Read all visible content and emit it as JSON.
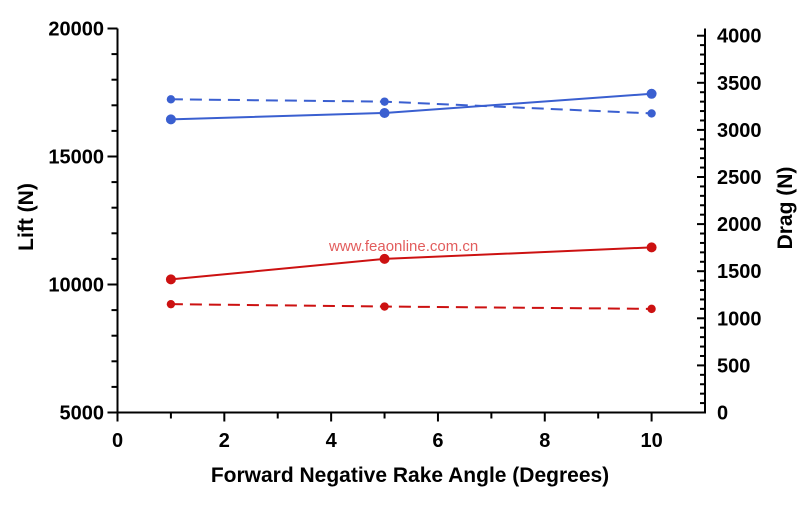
{
  "watermark": {
    "text": "www.feaonline.com.cn",
    "color": "#e25d5d"
  },
  "chart_data": {
    "type": "line",
    "title": "",
    "xlabel": "Forward Negative Rake Angle (Degrees)",
    "grid": false,
    "legend": "none",
    "x": [
      1,
      5,
      10
    ],
    "x_axis": {
      "min": 0,
      "max": 11,
      "major_step": 2,
      "minor_step": 1,
      "tick_values": [
        0,
        2,
        4,
        6,
        8,
        10
      ],
      "tick_labels": [
        "0",
        "2",
        "4",
        "6",
        "8",
        "10"
      ]
    },
    "left_axis": {
      "label": "Lift (N)",
      "min": 5000,
      "max": 20000,
      "major_step": 5000,
      "minor_step": 1000,
      "tick_values": [
        5000,
        10000,
        15000,
        20000
      ],
      "tick_labels": [
        "5000",
        "10000",
        "15000",
        "20000"
      ]
    },
    "right_axis": {
      "label": "Drag (N)",
      "min": 0,
      "max": 4000,
      "major_step": 500,
      "minor_step": 100,
      "tick_values": [
        0,
        500,
        1000,
        1500,
        2000,
        2500,
        3000,
        3500,
        4000
      ],
      "tick_labels": [
        "0",
        "500",
        "1000",
        "1500",
        "2000",
        "2500",
        "3000",
        "3500",
        "4000"
      ]
    },
    "colors": {
      "blue": "#3a5fd0",
      "red": "#cc1111",
      "axis": "#000000"
    },
    "series": [
      {
        "name": "Lift, blue solid",
        "axis": "left",
        "color": "#3a5fd0",
        "line_style": "solid",
        "values": [
          16450,
          16700,
          17450
        ]
      },
      {
        "name": "Drag, blue dashed",
        "axis": "right",
        "color": "#3a5fd0",
        "line_style": "dashed",
        "values": [
          3325,
          3300,
          3175
        ]
      },
      {
        "name": "Lift, red solid",
        "axis": "left",
        "color": "#cc1111",
        "line_style": "solid",
        "values": [
          10200,
          11000,
          11450
        ]
      },
      {
        "name": "Drag, red dashed",
        "axis": "right",
        "color": "#cc1111",
        "line_style": "dashed",
        "values": [
          1150,
          1125,
          1100
        ]
      }
    ]
  }
}
